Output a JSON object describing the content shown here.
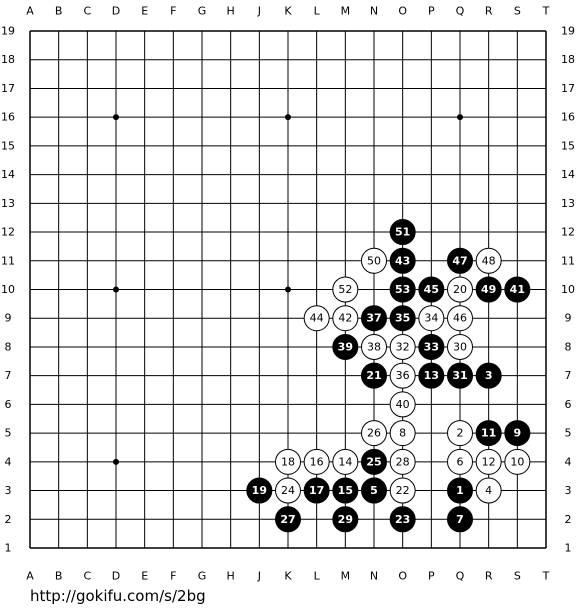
{
  "board": {
    "columns": [
      "A",
      "B",
      "C",
      "D",
      "E",
      "F",
      "G",
      "H",
      "J",
      "K",
      "L",
      "M",
      "N",
      "O",
      "P",
      "Q",
      "R",
      "S",
      "T"
    ],
    "rows": [
      19,
      18,
      17,
      16,
      15,
      14,
      13,
      12,
      11,
      10,
      9,
      8,
      7,
      6,
      5,
      4,
      3,
      2,
      1
    ],
    "stones": [
      {
        "col": "O",
        "row": 12,
        "color": "black",
        "move": 51
      },
      {
        "col": "N",
        "row": 11,
        "color": "white",
        "move": 50
      },
      {
        "col": "O",
        "row": 11,
        "color": "black",
        "move": 43
      },
      {
        "col": "Q",
        "row": 11,
        "color": "black",
        "move": 47
      },
      {
        "col": "R",
        "row": 11,
        "color": "white",
        "move": 48
      },
      {
        "col": "M",
        "row": 10,
        "color": "white",
        "move": 52
      },
      {
        "col": "O",
        "row": 10,
        "color": "black",
        "move": 53
      },
      {
        "col": "P",
        "row": 10,
        "color": "black",
        "move": 45
      },
      {
        "col": "Q",
        "row": 10,
        "color": "white",
        "move": 20
      },
      {
        "col": "R",
        "row": 10,
        "color": "black",
        "move": 49
      },
      {
        "col": "S",
        "row": 10,
        "color": "black",
        "move": 41
      },
      {
        "col": "L",
        "row": 9,
        "color": "white",
        "move": 44
      },
      {
        "col": "M",
        "row": 9,
        "color": "white",
        "move": 42
      },
      {
        "col": "N",
        "row": 9,
        "color": "black",
        "move": 37
      },
      {
        "col": "O",
        "row": 9,
        "color": "black",
        "move": 35
      },
      {
        "col": "P",
        "row": 9,
        "color": "white",
        "move": 34
      },
      {
        "col": "Q",
        "row": 9,
        "color": "white",
        "move": 46
      },
      {
        "col": "M",
        "row": 8,
        "color": "black",
        "move": 39
      },
      {
        "col": "N",
        "row": 8,
        "color": "white",
        "move": 38
      },
      {
        "col": "O",
        "row": 8,
        "color": "white",
        "move": 32
      },
      {
        "col": "P",
        "row": 8,
        "color": "black",
        "move": 33
      },
      {
        "col": "Q",
        "row": 8,
        "color": "white",
        "move": 30
      },
      {
        "col": "N",
        "row": 7,
        "color": "black",
        "move": 21
      },
      {
        "col": "O",
        "row": 7,
        "color": "white",
        "move": 36
      },
      {
        "col": "P",
        "row": 7,
        "color": "black",
        "move": 13
      },
      {
        "col": "Q",
        "row": 7,
        "color": "black",
        "move": 31
      },
      {
        "col": "R",
        "row": 7,
        "color": "black",
        "move": 3
      },
      {
        "col": "O",
        "row": 6,
        "color": "white",
        "move": 40
      },
      {
        "col": "N",
        "row": 5,
        "color": "white",
        "move": 26
      },
      {
        "col": "O",
        "row": 5,
        "color": "white",
        "move": 8
      },
      {
        "col": "Q",
        "row": 5,
        "color": "white",
        "move": 2
      },
      {
        "col": "R",
        "row": 5,
        "color": "black",
        "move": 11
      },
      {
        "col": "S",
        "row": 5,
        "color": "black",
        "move": 9
      },
      {
        "col": "K",
        "row": 4,
        "color": "white",
        "move": 18
      },
      {
        "col": "L",
        "row": 4,
        "color": "white",
        "move": 16
      },
      {
        "col": "M",
        "row": 4,
        "color": "white",
        "move": 14
      },
      {
        "col": "N",
        "row": 4,
        "color": "black",
        "move": 25
      },
      {
        "col": "O",
        "row": 4,
        "color": "white",
        "move": 28
      },
      {
        "col": "Q",
        "row": 4,
        "color": "white",
        "move": 6
      },
      {
        "col": "R",
        "row": 4,
        "color": "white",
        "move": 12
      },
      {
        "col": "S",
        "row": 4,
        "color": "white",
        "move": 10
      },
      {
        "col": "J",
        "row": 3,
        "color": "black",
        "move": 19
      },
      {
        "col": "K",
        "row": 3,
        "color": "white",
        "move": 24
      },
      {
        "col": "L",
        "row": 3,
        "color": "black",
        "move": 17
      },
      {
        "col": "M",
        "row": 3,
        "color": "black",
        "move": 15
      },
      {
        "col": "N",
        "row": 3,
        "color": "black",
        "move": 5
      },
      {
        "col": "O",
        "row": 3,
        "color": "white",
        "move": 22
      },
      {
        "col": "Q",
        "row": 3,
        "color": "black",
        "move": 1
      },
      {
        "col": "R",
        "row": 3,
        "color": "white",
        "move": 4
      },
      {
        "col": "K",
        "row": 2,
        "color": "black",
        "move": 27
      },
      {
        "col": "M",
        "row": 2,
        "color": "black",
        "move": 29
      },
      {
        "col": "O",
        "row": 2,
        "color": "black",
        "move": 23
      },
      {
        "col": "Q",
        "row": 2,
        "color": "black",
        "move": 7
      }
    ]
  },
  "footer": {
    "url": "http://gokifu.com/s/2bg"
  }
}
